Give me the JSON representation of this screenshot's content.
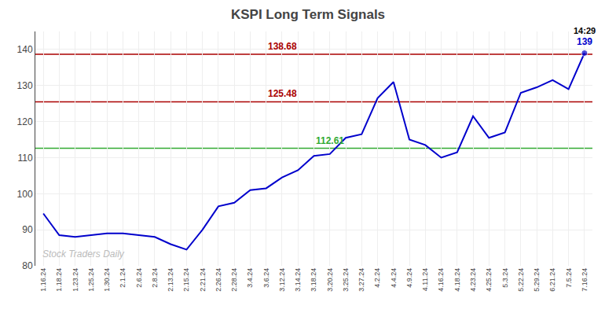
{
  "chart_data": {
    "type": "line",
    "title": "KSPI Long Term Signals",
    "categories": [
      "1.16.24",
      "1.18.24",
      "1.23.24",
      "1.25.24",
      "1.30.24",
      "2.1.24",
      "2.6.24",
      "2.8.24",
      "2.13.24",
      "2.15.24",
      "2.21.24",
      "2.26.24",
      "2.28.24",
      "3.4.24",
      "3.6.24",
      "3.12.24",
      "3.14.24",
      "3.18.24",
      "3.20.24",
      "3.25.24",
      "3.27.24",
      "4.2.24",
      "4.4.24",
      "4.9.24",
      "4.11.24",
      "4.16.24",
      "4.18.24",
      "4.23.24",
      "4.25.24",
      "5.3.24",
      "5.22.24",
      "5.29.24",
      "6.21.24",
      "7.5.24",
      "7.16.24"
    ],
    "values": [
      94.5,
      88.5,
      88.0,
      88.5,
      89.0,
      89.0,
      88.5,
      88.0,
      86.0,
      84.5,
      90.0,
      96.5,
      97.5,
      101.0,
      101.5,
      104.5,
      106.5,
      110.5,
      111.0,
      115.5,
      116.5,
      126.5,
      131.0,
      115.0,
      113.5,
      110.0,
      111.5,
      121.5,
      115.5,
      117.0,
      128.0,
      129.5,
      131.5,
      129.0,
      139.0
    ],
    "color": "#0000cc",
    "marker": "circle",
    "reference_lines": [
      {
        "value": 138.68,
        "label": "138.68",
        "color": "#aa0000"
      },
      {
        "value": 125.48,
        "label": "125.48",
        "color": "#aa0000"
      },
      {
        "value": 112.61,
        "label": "112.61",
        "color": "#33aa33"
      }
    ],
    "annotations": [
      {
        "text": "139",
        "category": "7.16.24",
        "value": 139.0,
        "color": "#0000cc"
      },
      {
        "text": "14:29",
        "category": "7.16.24",
        "value": 139.0,
        "color": "#000000"
      }
    ],
    "watermark": "Stock Traders Daily",
    "ylim": [
      80,
      145
    ],
    "yticks": [
      80,
      90,
      100,
      110,
      120,
      130,
      140
    ],
    "grid": true
  }
}
